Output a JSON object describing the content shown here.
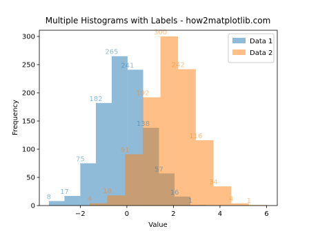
{
  "chart_data": {
    "type": "histogram",
    "title": "Multiple Histograms with Labels - how2matplotlib.com",
    "x_label": "Value",
    "y_label": "Frequency",
    "xlim": [
      -3.76,
      6.46
    ],
    "ylim": [
      0,
      311
    ],
    "xticks": [
      {
        "value": -2,
        "label": "−2"
      },
      0,
      2,
      4,
      6
    ],
    "yticks": [
      0,
      50,
      100,
      150,
      200,
      250,
      300
    ],
    "legend": "upper right",
    "alpha": 0.5,
    "series": [
      {
        "name": "Data 1",
        "color": "#1f77b4",
        "bins": [
          -3.35,
          -2.68,
          -2.0,
          -1.33,
          -0.65,
          0.03,
          0.7,
          1.38,
          2.05,
          2.73,
          3.4
        ],
        "values": [
          8,
          17,
          75,
          182,
          265,
          241,
          138,
          57,
          16,
          1
        ]
      },
      {
        "name": "Data 2",
        "color": "#ff7f0e",
        "bins": [
          -1.6,
          -0.84,
          -0.08,
          0.68,
          1.44,
          2.2,
          2.96,
          3.72,
          4.48,
          5.24,
          6.0
        ],
        "values": [
          4,
          18,
          91,
          192,
          300,
          242,
          116,
          34,
          4,
          1
        ]
      }
    ]
  }
}
